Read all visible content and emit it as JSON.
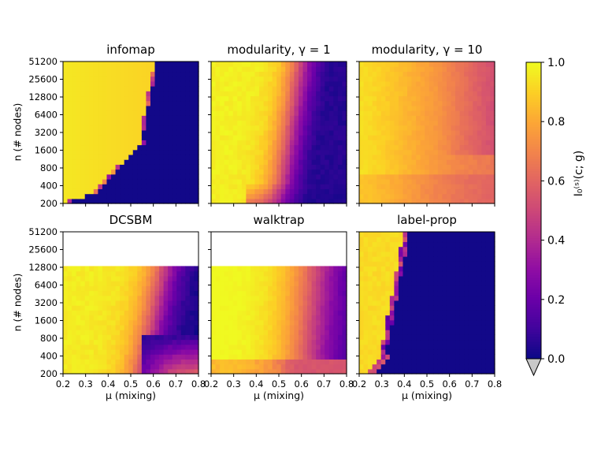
{
  "chart_data": [
    {
      "type": "heatmap",
      "title": "infomap",
      "model": "infomap",
      "xlabel": "",
      "ylabel": "n (# nodes)",
      "max_n": 51200
    },
    {
      "type": "heatmap",
      "title": "modularity, γ = 1",
      "model": "mod1",
      "xlabel": "",
      "ylabel": "",
      "max_n": 51200
    },
    {
      "type": "heatmap",
      "title": "modularity, γ = 10",
      "model": "mod10",
      "xlabel": "",
      "ylabel": "",
      "max_n": 51200
    },
    {
      "type": "heatmap",
      "title": "DCSBM",
      "model": "dcsbm",
      "xlabel": "μ (mixing)",
      "ylabel": "n (# nodes)",
      "max_n": 12800
    },
    {
      "type": "heatmap",
      "title": "walktrap",
      "model": "walktrap",
      "xlabel": "μ (mixing)",
      "ylabel": "",
      "max_n": 12800
    },
    {
      "type": "heatmap",
      "title": "label-prop",
      "model": "labelprop",
      "xlabel": "μ (mixing)",
      "ylabel": "",
      "max_n": 51200
    }
  ],
  "axes": {
    "x_ticks": [
      "0.2",
      "0.3",
      "0.4",
      "0.5",
      "0.6",
      "0.7",
      "0.8"
    ],
    "x_range": [
      0.2,
      0.8
    ],
    "y_ticks": [
      "200",
      "400",
      "800",
      "1600",
      "3200",
      "6400",
      "12800",
      "25600",
      "51200"
    ],
    "xlabel_text": "μ (mixing)",
    "ylabel_text": "n (# nodes)"
  },
  "colorbar": {
    "label": "I₀⁽ˢ⁾(c; g)",
    "ticks": [
      "0.0",
      "0.2",
      "0.4",
      "0.6",
      "0.8",
      "1.0"
    ],
    "range": [
      0,
      1
    ],
    "cmap": "plasma",
    "under_color": "#c8c8c8"
  },
  "colors": {
    "plasma": [
      "#0d0887",
      "#41049d",
      "#6a00a8",
      "#8f0da4",
      "#b12a90",
      "#cc4778",
      "#e16462",
      "#f2844b",
      "#fca636",
      "#fcce25",
      "#f0f921"
    ]
  }
}
